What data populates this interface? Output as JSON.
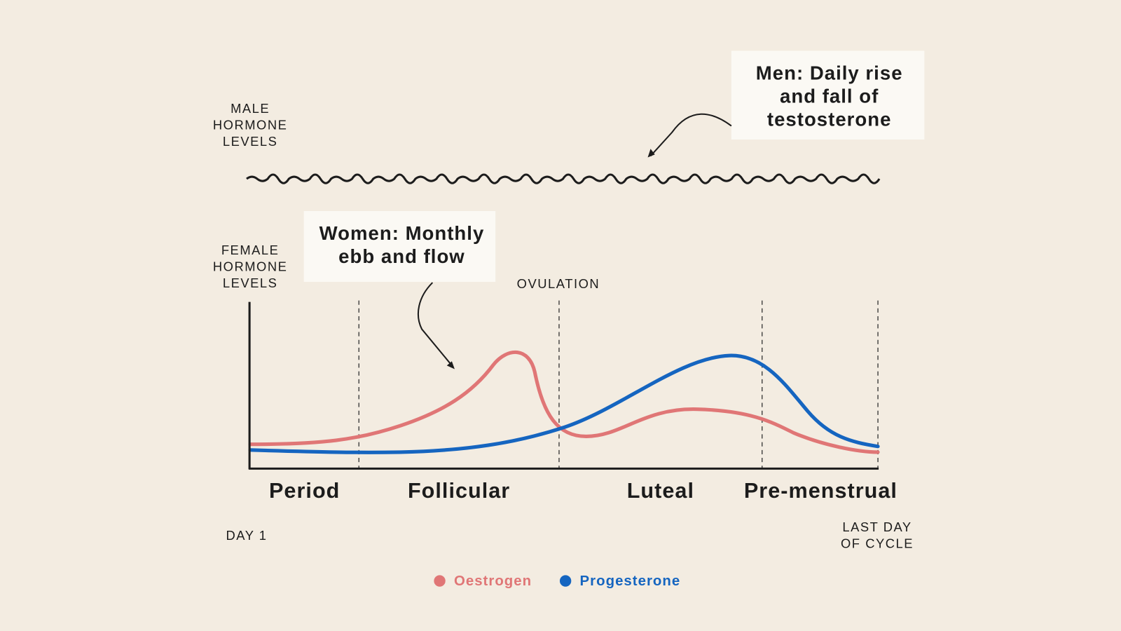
{
  "male": {
    "label_lines": [
      "MALE",
      "HORMONE",
      "LEVELS"
    ],
    "callout_lines": [
      "Men: Daily rise",
      "and fall of",
      "testosterone"
    ]
  },
  "female": {
    "label_lines": [
      "FEMALE",
      "HORMONE",
      "LEVELS"
    ],
    "callout_lines": [
      "Women: Monthly",
      "ebb and flow"
    ]
  },
  "ovulation": "OVULATION",
  "phases": [
    "Period",
    "Follicular",
    "Luteal",
    "Pre-menstrual"
  ],
  "start_label": "DAY 1",
  "end_label_lines": [
    "LAST DAY",
    "OF CYCLE"
  ],
  "legend": [
    {
      "name": "Oestrogen",
      "color": "#e07676"
    },
    {
      "name": "Progesterone",
      "color": "#1565c0"
    }
  ]
}
